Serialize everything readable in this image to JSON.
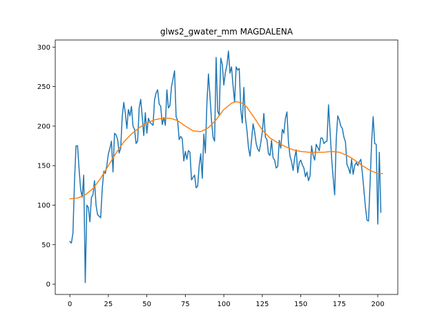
{
  "chart_data": {
    "type": "line",
    "title": "glws2_gwater_mm MAGDALENA",
    "xlabel": "",
    "ylabel": "",
    "xlim": [
      -9.5,
      213
    ],
    "ylim": [
      -13,
      309
    ],
    "x_ticks": [
      0,
      25,
      50,
      75,
      100,
      125,
      150,
      175,
      200
    ],
    "y_ticks": [
      0,
      50,
      100,
      150,
      200,
      250,
      300
    ],
    "grid": false,
    "series": [
      {
        "color": "#1f77b4",
        "x_start": 0,
        "values": [
          54,
          52,
          65,
          130,
          175,
          175,
          145,
          120,
          110,
          138,
          2,
          100,
          97,
          79,
          110,
          113,
          131,
          100,
          88,
          86,
          84,
          120,
          143,
          140,
          150,
          165,
          172,
          181,
          142,
          191,
          189,
          183,
          166,
          172,
          212,
          230,
          217,
          197,
          221,
          213,
          225,
          200,
          196,
          178,
          181,
          223,
          234,
          212,
          188,
          217,
          191,
          210,
          205,
          203,
          201,
          233,
          242,
          246,
          228,
          225,
          202,
          211,
          201,
          246,
          223,
          226,
          250,
          260,
          270,
          212,
          207,
          183,
          187,
          184,
          156,
          168,
          158,
          169,
          167,
          132,
          135,
          138,
          122,
          124,
          150,
          165,
          134,
          190,
          166,
          229,
          266,
          238,
          207,
          186,
          181,
          287,
          219,
          214,
          286,
          278,
          252,
          268,
          277,
          295,
          267,
          275,
          251,
          230,
          275,
          271,
          273,
          221,
          204,
          249,
          211,
          195,
          173,
          162,
          182,
          203,
          193,
          178,
          171,
          168,
          179,
          193,
          216,
          186,
          183,
          165,
          163,
          182,
          160,
          157,
          147,
          149,
          182,
          172,
          196,
          191,
          210,
          218,
          179,
          162,
          155,
          144,
          160,
          170,
          141,
          154,
          157,
          151,
          147,
          136,
          142,
          131,
          137,
          175,
          163,
          157,
          177,
          173,
          169,
          185,
          185,
          178,
          180,
          181,
          227,
          194,
          160,
          135,
          113,
          183,
          213,
          208,
          200,
          197,
          186,
          180,
          151,
          147,
          140,
          158,
          139,
          150,
          154,
          150,
          155,
          158,
          140,
          119,
          97,
          81,
          80,
          128,
          180,
          212,
          178,
          177,
          76,
          167,
          91
        ]
      },
      {
        "color": "#ff7f0e",
        "x": [
          0,
          5,
          10,
          15,
          20,
          25,
          30,
          35,
          40,
          45,
          50,
          55,
          60,
          65,
          70,
          75,
          80,
          85,
          90,
          95,
          100,
          105,
          108,
          112,
          115,
          120,
          125,
          130,
          135,
          140,
          145,
          150,
          155,
          160,
          165,
          170,
          175,
          180,
          185,
          190,
          195,
          200,
          203
        ],
        "values": [
          108,
          109,
          113,
          121,
          134,
          150,
          166,
          180,
          190,
          198,
          204,
          208,
          210,
          210,
          207,
          200,
          194,
          193,
          198,
          208,
          221,
          229,
          231,
          229,
          224,
          210,
          195,
          185,
          179,
          174,
          170,
          168,
          167,
          167,
          167,
          168,
          167,
          163,
          157,
          150,
          144,
          140,
          140
        ]
      }
    ]
  }
}
